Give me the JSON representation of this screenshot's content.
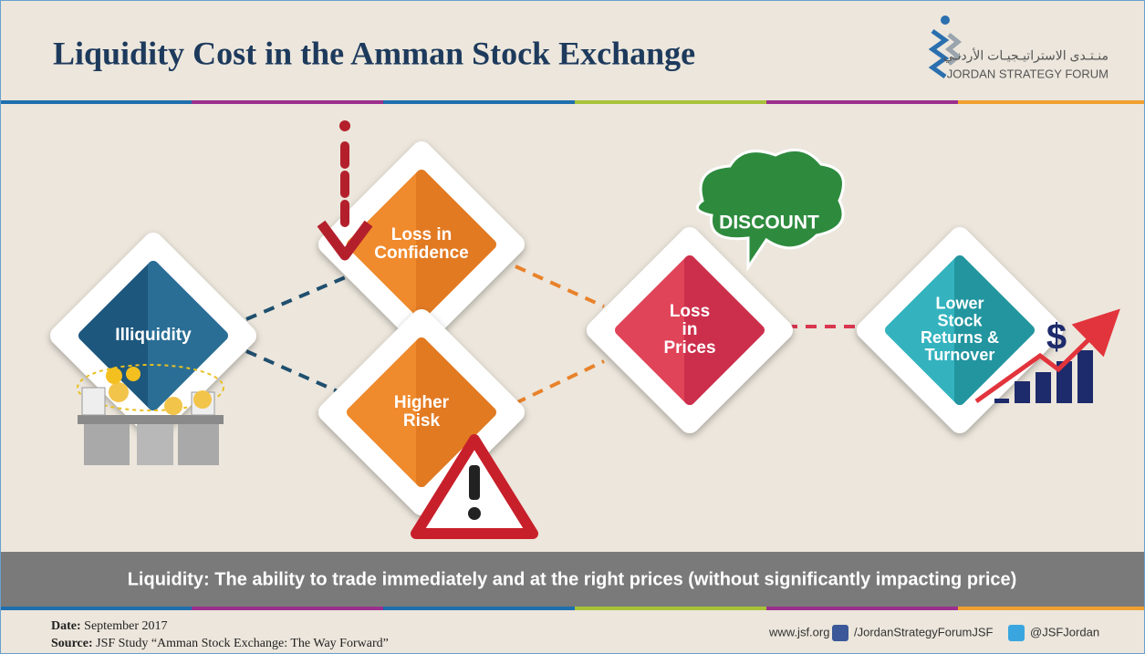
{
  "header": {
    "title": "Liquidity Cost in the Amman Stock Exchange",
    "logo_arabic": "منـتـدى الاستراتيـجيـات الأردنـي",
    "logo_english": "JORDAN STRATEGY FORUM"
  },
  "nodes": [
    {
      "lines": [
        "Illiquidity"
      ]
    },
    {
      "lines": [
        "Loss in",
        "Confidence"
      ]
    },
    {
      "lines": [
        "Higher",
        "Risk"
      ]
    },
    {
      "lines": [
        "Loss",
        "in",
        "Prices"
      ]
    },
    {
      "lines": [
        "Lower",
        "Stock",
        "Returns &",
        "Turnover"
      ]
    }
  ],
  "callout": "DISCOUNT",
  "icon_symbol": "$",
  "banner": "Liquidity: The ability to trade immediately and at the right prices (without significantly impacting price)",
  "footer": {
    "date_label": "Date:",
    "date": "September 2017",
    "source_label": "Source:",
    "source": "JSF Study “Amman Stock Exchange: The Way Forward”",
    "website": "www.jsf.org",
    "facebook": "/JordanStrategyForumJSF",
    "twitter": "@JSFJordan"
  }
}
